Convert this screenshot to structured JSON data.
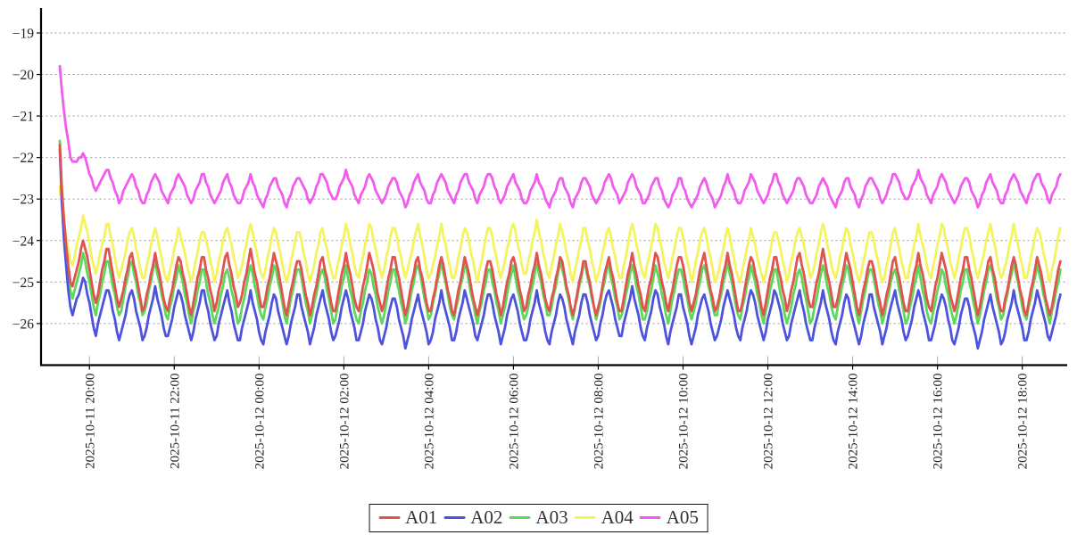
{
  "page": {
    "background": "#ffffff"
  },
  "chart_data": {
    "type": "line",
    "title": "",
    "xlabel": "",
    "ylabel": "",
    "grid": "horizontal-dashed",
    "grid_color": "#999999",
    "axis_color": "#000000",
    "x_axis": {
      "tick_labels": [
        "2025-10-11 20:00",
        "2025-10-11 22:00",
        "2025-10-12 00:00",
        "2025-10-12 02:00",
        "2025-10-12 04:00",
        "2025-10-12 06:00",
        "2025-10-12 08:00",
        "2025-10-12 10:00",
        "2025-10-12 12:00",
        "2025-10-12 14:00",
        "2025-10-12 16:00",
        "2025-10-12 18:00"
      ],
      "label_rotation_deg": 90,
      "first_tick_offset_min": 42,
      "tick_interval_min": 120,
      "duration_min": 1418
    },
    "y_axis": {
      "tick_labels": [
        "−19",
        "−20",
        "−21",
        "−22",
        "−23",
        "−24",
        "−25",
        "−26"
      ],
      "ticks": [
        -19,
        -20,
        -21,
        -22,
        -23,
        -24,
        -25,
        -26
      ],
      "display_range": [
        -27.0,
        -18.4
      ],
      "gridlines": "dashed"
    },
    "sample_interval_min": 3,
    "value_quantize_step": 0.1,
    "series": [
      {
        "name": "A01",
        "color": "#e0534e",
        "steady_mean": -25.05,
        "amplitude": 0.75,
        "period_min": 33.75,
        "start_value": -21.7,
        "fast_decay_amp": 1.9,
        "fast_decay_tau_min": 6,
        "slow_decay_amp": 0.7,
        "slow_decay_tau_min": 40
      },
      {
        "name": "A02",
        "color": "#4d53dd",
        "steady_mean": -25.85,
        "amplitude": 0.65,
        "period_min": 33.75,
        "start_value": -21.85,
        "fast_decay_amp": 2.6,
        "fast_decay_tau_min": 6,
        "slow_decay_amp": 0.75,
        "slow_decay_tau_min": 40
      },
      {
        "name": "A03",
        "color": "#5cd95c",
        "steady_mean": -25.28,
        "amplitude": 0.72,
        "period_min": 33.75,
        "start_value": -21.6,
        "fast_decay_amp": 2.26,
        "fast_decay_tau_min": 6,
        "slow_decay_amp": 0.7,
        "slow_decay_tau_min": 40
      },
      {
        "name": "A04",
        "color": "#f5f360",
        "steady_mean": -24.3,
        "amplitude": 0.7,
        "period_min": 33.75,
        "start_value": -22.7,
        "fast_decay_amp": 0.5,
        "fast_decay_tau_min": 6,
        "slow_decay_amp": 0.4,
        "slow_decay_tau_min": 40
      },
      {
        "name": "A05",
        "color": "#f25cee",
        "steady_mean": -22.78,
        "amplitude": 0.38,
        "period_min": 33.75,
        "start_value": -19.8,
        "fast_decay_amp": 1.5,
        "fast_decay_tau_min": 10,
        "slow_decay_amp": 1.1,
        "slow_decay_tau_min": 45
      }
    ],
    "draw_order": [
      "A04",
      "A03",
      "A02",
      "A01",
      "A05"
    ],
    "legend": {
      "entries": [
        "A01",
        "A02",
        "A03",
        "A04",
        "A05"
      ],
      "position": "bottom-center"
    }
  }
}
